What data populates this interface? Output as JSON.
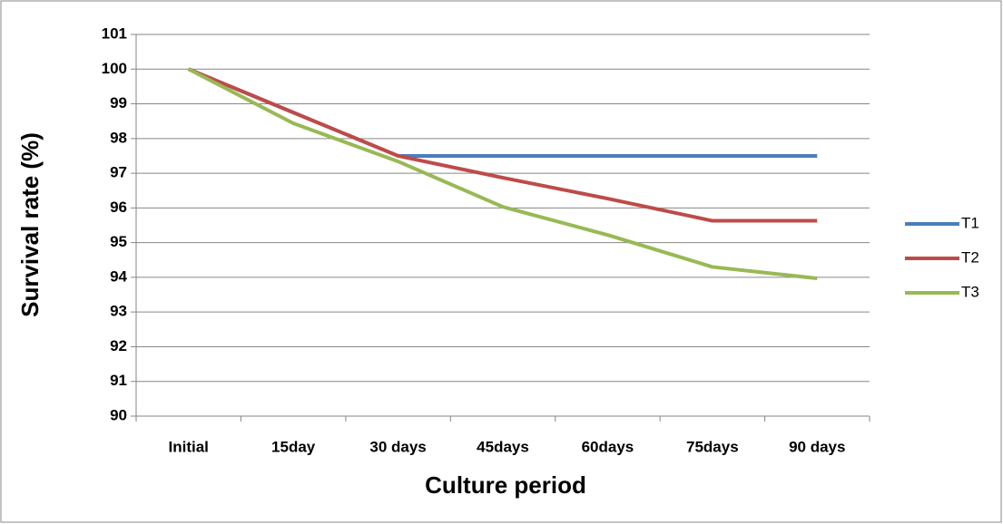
{
  "chart_data": {
    "type": "line",
    "xlabel": "Culture period",
    "ylabel": "Survival rate (%)",
    "categories": [
      "Initial",
      "15day",
      "30 days",
      "45days",
      "60days",
      "75days",
      "90 days"
    ],
    "series": [
      {
        "name": "T1",
        "color": "#4a7ebb",
        "values": [
          100,
          98.75,
          97.5,
          97.5,
          97.5,
          97.5,
          97.5
        ]
      },
      {
        "name": "T2",
        "color": "#be4b48",
        "values": [
          100,
          98.75,
          97.5,
          96.87,
          96.27,
          95.63,
          95.63
        ]
      },
      {
        "name": "T3",
        "color": "#98b954",
        "values": [
          100,
          98.44,
          97.34,
          96.03,
          95.22,
          94.3,
          93.97
        ]
      }
    ],
    "ylim": [
      90,
      101
    ],
    "yticks": [
      90,
      91,
      92,
      93,
      94,
      95,
      96,
      97,
      98,
      99,
      100,
      101
    ],
    "grid": true,
    "legend": "right"
  }
}
